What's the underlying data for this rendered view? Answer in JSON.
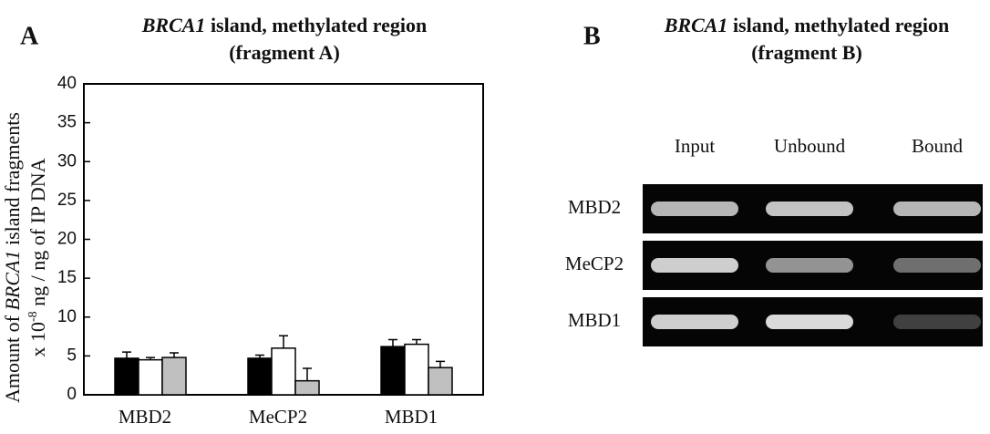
{
  "panel_a": {
    "label": "A",
    "chart_data": {
      "type": "bar",
      "title": [
        "BRCA1",
        " island, methylated region"
      ],
      "subtitle": "(fragment A)",
      "ylabel": [
        [
          "Amount of ",
          "BRCA1",
          " island fragments"
        ],
        [
          "x 10",
          "-8",
          " ng / ng of IP DNA"
        ]
      ],
      "categories": [
        "MBD2",
        "MeCP2",
        "MBD1"
      ],
      "series": [
        {
          "color": "#000000",
          "values": [
            4.7,
            4.7,
            6.2
          ],
          "errors": [
            0.8,
            0.4,
            0.9
          ]
        },
        {
          "color": "#ffffff",
          "values": [
            4.5,
            6.0,
            6.5
          ],
          "errors": [
            0.3,
            1.6,
            0.6
          ]
        },
        {
          "color": "#c0c0c0",
          "values": [
            4.8,
            1.8,
            3.5
          ],
          "errors": [
            0.6,
            1.6,
            0.8
          ]
        }
      ],
      "ylim": [
        0,
        40
      ],
      "yticks": [
        0,
        5,
        10,
        15,
        20,
        25,
        30,
        35,
        40
      ],
      "grid": false
    }
  },
  "panel_b": {
    "label": "B",
    "title": [
      "BRCA1",
      " island, methylated region"
    ],
    "subtitle": "(fragment B)",
    "lanes": [
      "Input",
      "Unbound",
      "Bound"
    ],
    "rows": [
      "MBD2",
      "MeCP2",
      "MBD1"
    ]
  }
}
